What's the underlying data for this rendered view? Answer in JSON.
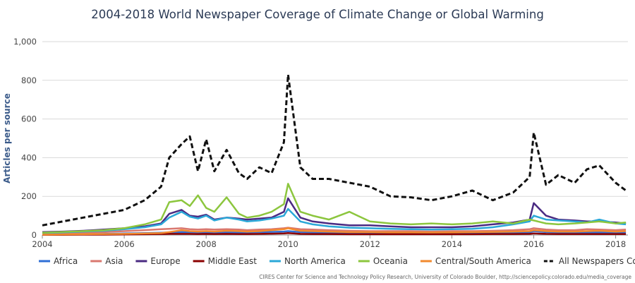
{
  "chart_data": {
    "type": "line",
    "title": "2004-2018 World Newspaper Coverage of Climate Change or Global Warming",
    "xlabel": "",
    "ylabel": "Articles per source",
    "xlim": [
      2004,
      2018.3
    ],
    "ylim": [
      0,
      1000
    ],
    "x_ticks": [
      "2004",
      "2006",
      "2008",
      "2010",
      "2012",
      "2014",
      "2016",
      "2018"
    ],
    "y_ticks": [
      "0",
      "200",
      "400",
      "600",
      "800",
      "1,000"
    ],
    "grid": true,
    "legend_position": "bottom",
    "credit": "CIRES Center for Science and Technology Policy Research, University of Colorado Boulder, http://sciencepolicy.colorado.edu/media_coverage",
    "x": [
      2004.0,
      2004.5,
      2005.0,
      2005.5,
      2006.0,
      2006.5,
      2006.9,
      2007.1,
      2007.4,
      2007.6,
      2007.8,
      2008.0,
      2008.2,
      2008.5,
      2008.8,
      2009.0,
      2009.3,
      2009.6,
      2009.9,
      2010.0,
      2010.3,
      2010.6,
      2011.0,
      2011.5,
      2012.0,
      2012.5,
      2013.0,
      2013.5,
      2014.0,
      2014.5,
      2015.0,
      2015.5,
      2015.9,
      2016.0,
      2016.3,
      2016.6,
      2017.0,
      2017.3,
      2017.6,
      2018.0,
      2018.25
    ],
    "series": [
      {
        "name": "Africa",
        "color": "#2f6fd6",
        "dashed": false,
        "values": [
          3,
          4,
          5,
          6,
          8,
          10,
          12,
          14,
          15,
          15,
          14,
          14,
          13,
          14,
          13,
          13,
          15,
          16,
          18,
          20,
          15,
          14,
          12,
          11,
          11,
          10,
          10,
          10,
          10,
          11,
          12,
          13,
          14,
          20,
          15,
          14,
          14,
          13,
          14,
          12,
          12
        ]
      },
      {
        "name": "Asia",
        "color": "#d9776f",
        "dashed": false,
        "values": [
          8,
          10,
          12,
          15,
          20,
          25,
          30,
          32,
          35,
          30,
          28,
          30,
          28,
          30,
          28,
          25,
          28,
          30,
          35,
          38,
          30,
          28,
          25,
          22,
          20,
          20,
          20,
          18,
          20,
          20,
          22,
          25,
          30,
          35,
          28,
          25,
          25,
          30,
          28,
          25,
          28
        ]
      },
      {
        "name": "Europe",
        "color": "#4a2a82",
        "dashed": false,
        "values": [
          15,
          18,
          22,
          28,
          35,
          45,
          60,
          110,
          130,
          100,
          95,
          105,
          80,
          90,
          85,
          80,
          85,
          90,
          120,
          190,
          90,
          70,
          60,
          50,
          50,
          45,
          40,
          40,
          40,
          45,
          55,
          65,
          80,
          165,
          100,
          80,
          75,
          70,
          70,
          65,
          60
        ]
      },
      {
        "name": "Middle East",
        "color": "#8b0000",
        "dashed": false,
        "values": [
          1,
          1,
          2,
          2,
          3,
          4,
          5,
          6,
          6,
          6,
          5,
          6,
          5,
          6,
          5,
          5,
          6,
          7,
          8,
          10,
          6,
          5,
          5,
          4,
          4,
          4,
          4,
          4,
          4,
          4,
          5,
          5,
          6,
          8,
          6,
          5,
          5,
          5,
          5,
          5,
          5
        ]
      },
      {
        "name": "North America",
        "color": "#2ba8d8",
        "dashed": false,
        "values": [
          10,
          14,
          18,
          22,
          30,
          40,
          55,
          90,
          120,
          95,
          85,
          100,
          75,
          90,
          80,
          70,
          75,
          85,
          100,
          135,
          70,
          55,
          45,
          38,
          35,
          32,
          30,
          28,
          30,
          32,
          40,
          55,
          70,
          100,
          80,
          75,
          70,
          65,
          80,
          60,
          55
        ]
      },
      {
        "name": "Oceania",
        "color": "#8cc63e",
        "dashed": false,
        "values": [
          12,
          16,
          20,
          25,
          35,
          55,
          80,
          170,
          180,
          150,
          205,
          140,
          120,
          195,
          110,
          90,
          100,
          120,
          160,
          265,
          120,
          100,
          80,
          120,
          70,
          60,
          55,
          60,
          55,
          60,
          70,
          60,
          80,
          75,
          60,
          55,
          60,
          65,
          70,
          60,
          65
        ]
      },
      {
        "name": "Central/South America",
        "color": "#f28a2e",
        "dashed": false,
        "values": [
          2,
          3,
          4,
          5,
          6,
          8,
          10,
          15,
          25,
          20,
          18,
          20,
          18,
          22,
          20,
          18,
          20,
          25,
          30,
          35,
          22,
          20,
          18,
          15,
          15,
          14,
          14,
          13,
          14,
          15,
          16,
          18,
          20,
          25,
          20,
          18,
          18,
          20,
          22,
          18,
          20
        ]
      },
      {
        "name": "All Newspapers Combined",
        "color": "#111111",
        "dashed": true,
        "values": [
          50,
          70,
          90,
          110,
          130,
          180,
          250,
          400,
          470,
          510,
          330,
          495,
          330,
          440,
          320,
          290,
          350,
          320,
          480,
          830,
          350,
          290,
          290,
          270,
          250,
          200,
          195,
          180,
          200,
          230,
          180,
          220,
          300,
          530,
          260,
          310,
          270,
          340,
          360,
          270,
          230
        ]
      }
    ]
  }
}
